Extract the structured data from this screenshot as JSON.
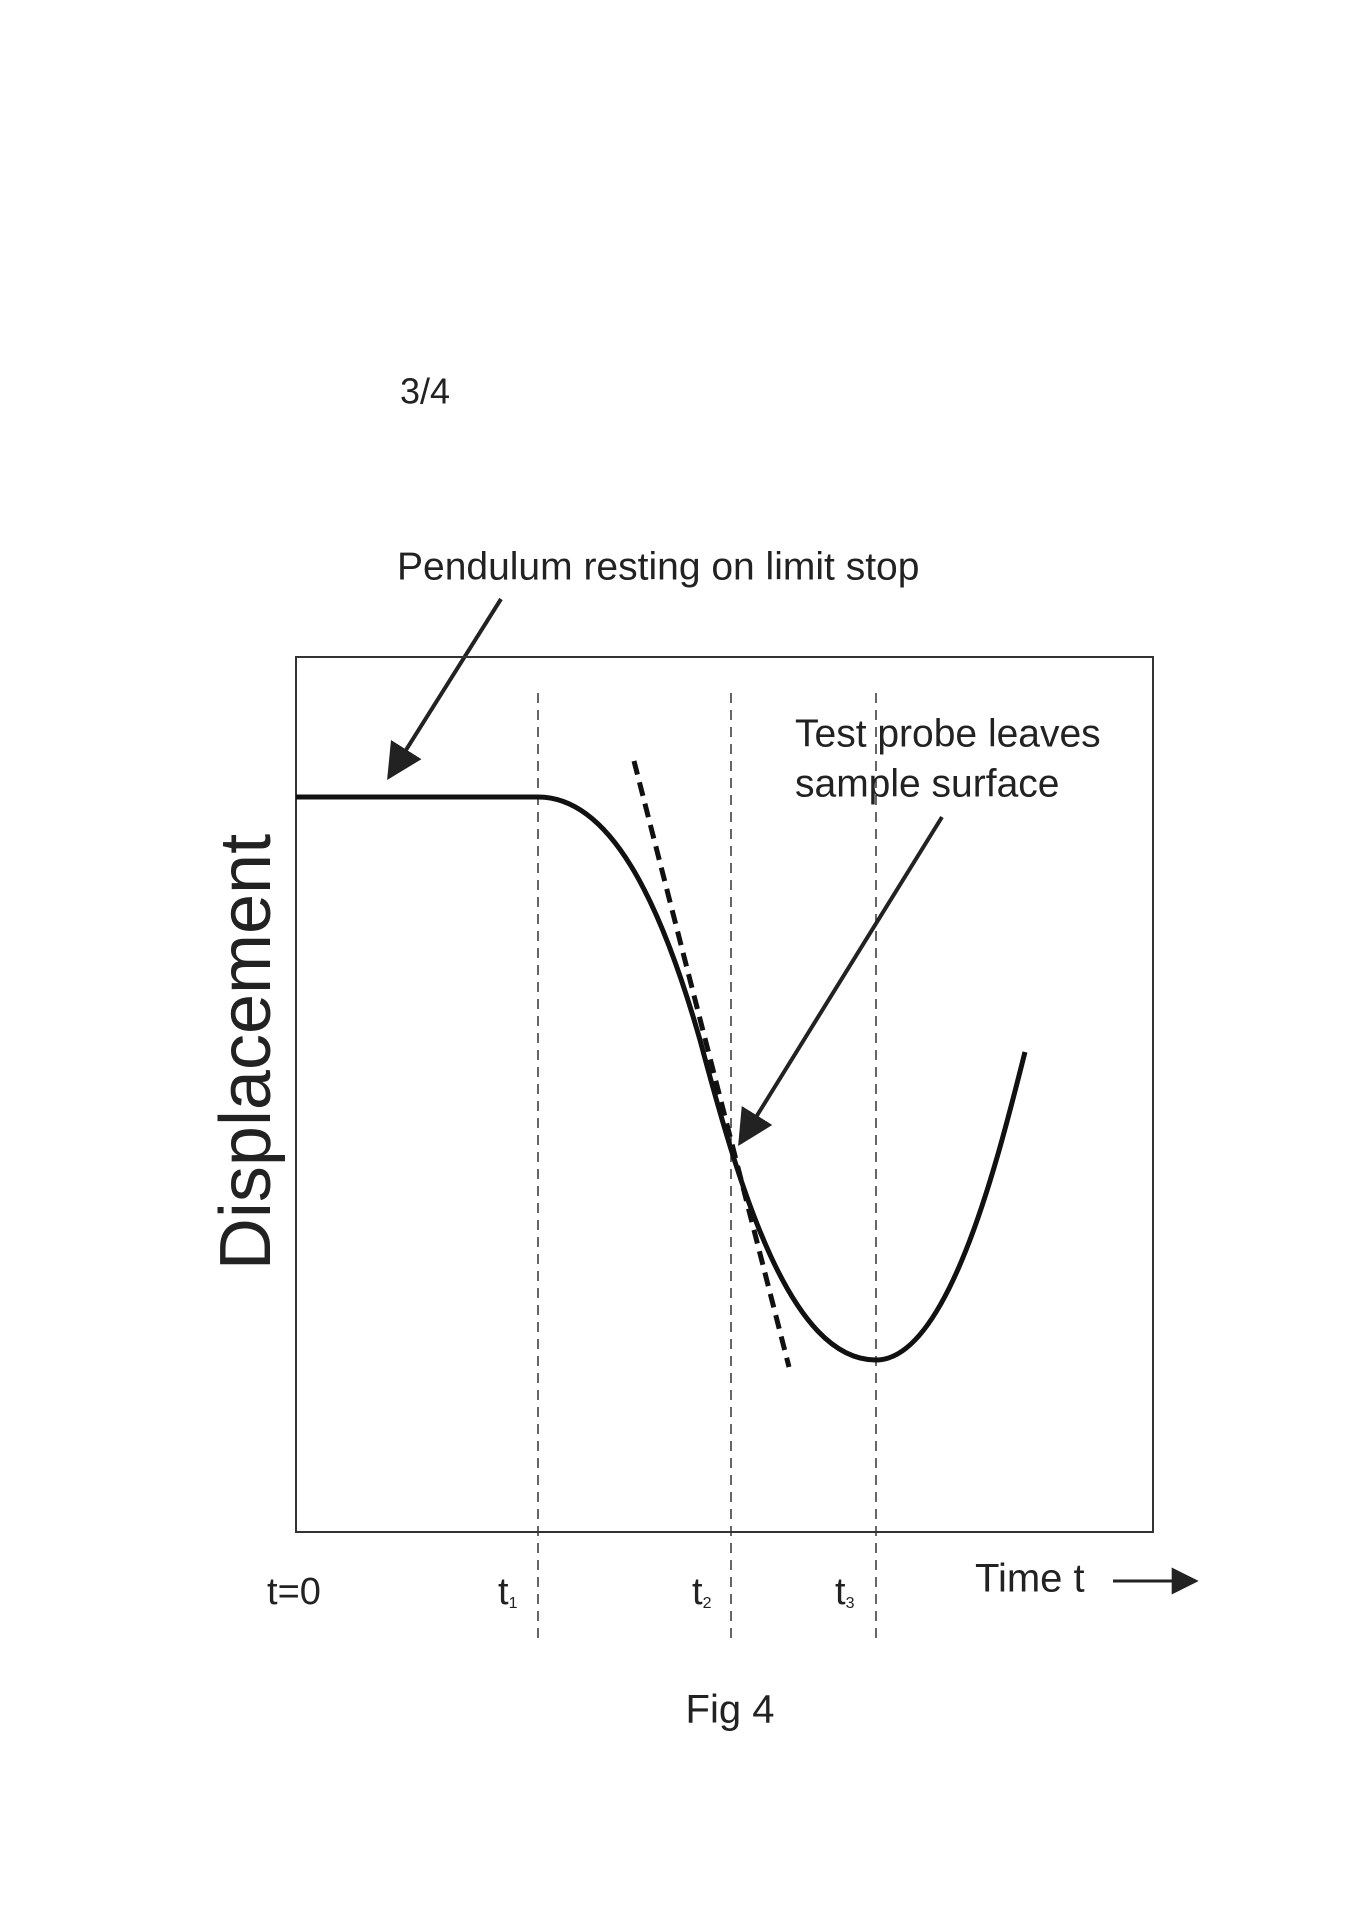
{
  "header": {
    "sheet": "3/4"
  },
  "annotations": {
    "pendulum": "Pendulum resting on limit stop",
    "probe_line1": "Test probe leaves",
    "probe_line2": "sample surface"
  },
  "axes": {
    "y_label": "Displacement",
    "x_label": "Time t",
    "x_marks": [
      {
        "label": "t=0"
      },
      {
        "label": "t",
        "sub": "1"
      },
      {
        "label": "t",
        "sub": "2"
      },
      {
        "label": "t",
        "sub": "3"
      }
    ]
  },
  "caption": "Fig 4"
}
